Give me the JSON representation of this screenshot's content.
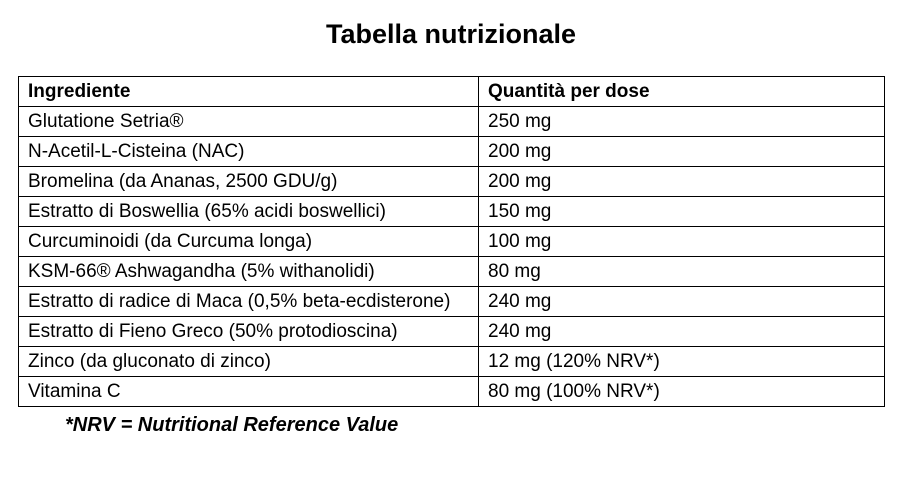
{
  "title": "Tabella nutrizionale",
  "table": {
    "headers": {
      "ingredient": "Ingrediente",
      "quantity": "Quantità per dose"
    },
    "rows": [
      {
        "ingredient": "Glutatione Setria®",
        "quantity": "250 mg"
      },
      {
        "ingredient": "N-Acetil-L-Cisteina (NAC)",
        "quantity": "200 mg"
      },
      {
        "ingredient": "Bromelina (da Ananas, 2500 GDU/g)",
        "quantity": "200 mg"
      },
      {
        "ingredient": "Estratto di Boswellia (65% acidi boswellici)",
        "quantity": "150 mg"
      },
      {
        "ingredient": "Curcuminoidi (da Curcuma longa)",
        "quantity": "100 mg"
      },
      {
        "ingredient": "KSM-66® Ashwagandha (5% withanolidi)",
        "quantity": "80 mg"
      },
      {
        "ingredient": "Estratto di radice di Maca (0,5% beta-ecdisterone)",
        "quantity": "240 mg"
      },
      {
        "ingredient": "Estratto di Fieno Greco (50% protodioscina)",
        "quantity": "240 mg"
      },
      {
        "ingredient": "Zinco (da gluconato di zinco)",
        "quantity": "12 mg (120% NRV*)"
      },
      {
        "ingredient": "Vitamina C",
        "quantity": "80 mg (100% NRV*)"
      }
    ]
  },
  "footnote": "*NRV = Nutritional Reference Value",
  "colors": {
    "text": "#000000",
    "border": "#000000",
    "background": "#ffffff"
  }
}
